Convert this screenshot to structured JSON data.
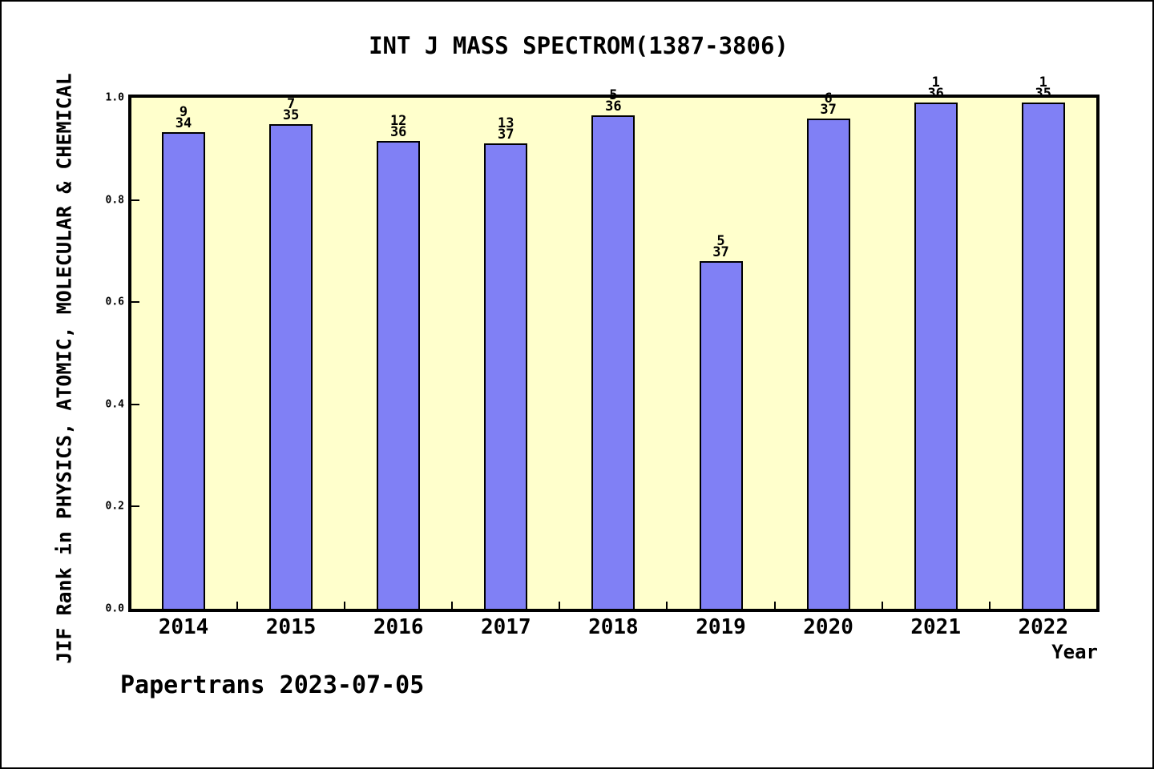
{
  "chart_data": {
    "type": "bar",
    "title": "INT J MASS SPECTROM(1387-3806)",
    "xlabel": "Year",
    "ylabel": "JIF Rank in PHYSICS, ATOMIC, MOLECULAR & CHEMICAL",
    "categories": [
      "2014",
      "2015",
      "2016",
      "2017",
      "2018",
      "2019",
      "2020",
      "2021",
      "2022"
    ],
    "values": [
      0.933,
      0.949,
      0.916,
      0.91,
      0.966,
      0.68,
      0.96,
      0.99,
      0.99
    ],
    "bar_labels": [
      {
        "rank": "9",
        "total": "34"
      },
      {
        "rank": "7",
        "total": "35"
      },
      {
        "rank": "12",
        "total": "36"
      },
      {
        "rank": "13",
        "total": "37"
      },
      {
        "rank": "5",
        "total": "36"
      },
      {
        "rank": "5",
        "total": "37"
      },
      {
        "rank": "6",
        "total": "37"
      },
      {
        "rank": "1",
        "total": "36"
      },
      {
        "rank": "1",
        "total": "35"
      }
    ],
    "ylim": [
      0.0,
      1.0
    ],
    "yticks": [
      0.0,
      0.2,
      0.4,
      0.6,
      0.8,
      1.0
    ],
    "ytick_labels": [
      "0.0",
      "0.2",
      "0.4",
      "0.6",
      "0.8",
      "1.0"
    ],
    "grid": false,
    "legend": "none",
    "colors": {
      "bar_fill": "#8080f5",
      "bar_border": "#000000",
      "plot_background": "#ffffcc",
      "canvas_background": "#ffffff",
      "text": "#000000"
    },
    "footer": "Papertrans 2023-07-05"
  }
}
